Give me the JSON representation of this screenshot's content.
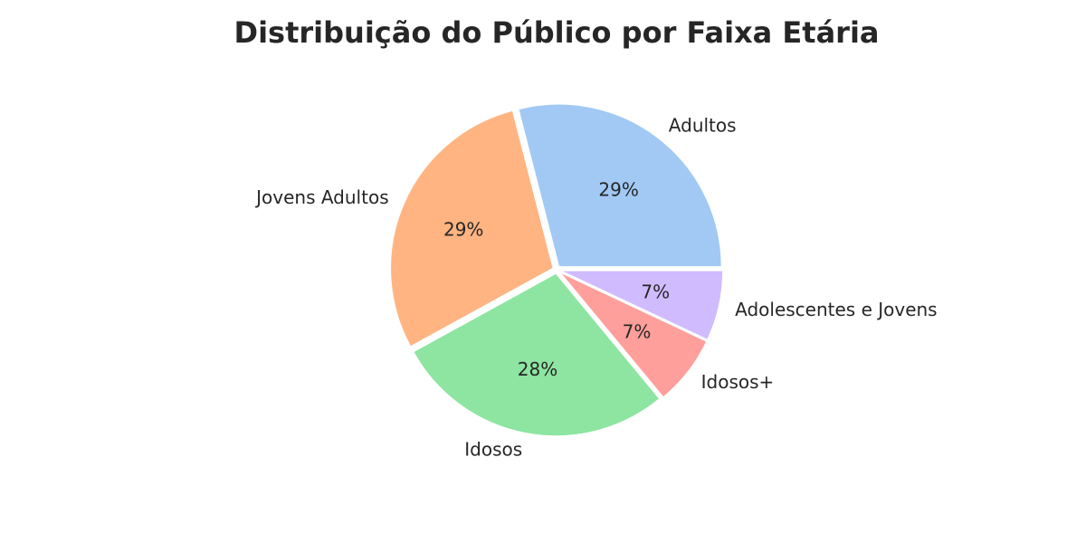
{
  "chart_data": {
    "type": "pie",
    "title": "Distribuição do Público por Faixa Etária",
    "categories": [
      "Adultos",
      "Jovens Adultos",
      "Idosos",
      "Idosos+",
      "Adolescentes e Jovens"
    ],
    "values": [
      29,
      29,
      28,
      7,
      7
    ],
    "value_labels": [
      "29%",
      "29%",
      "28%",
      "7%",
      "7%"
    ],
    "colors": [
      "#a1c9f4",
      "#ffb482",
      "#8de5a1",
      "#ff9f9b",
      "#d0bbff"
    ],
    "start_angle_deg": 0,
    "direction": "counterclockwise",
    "exploded": true,
    "legend": "none"
  }
}
